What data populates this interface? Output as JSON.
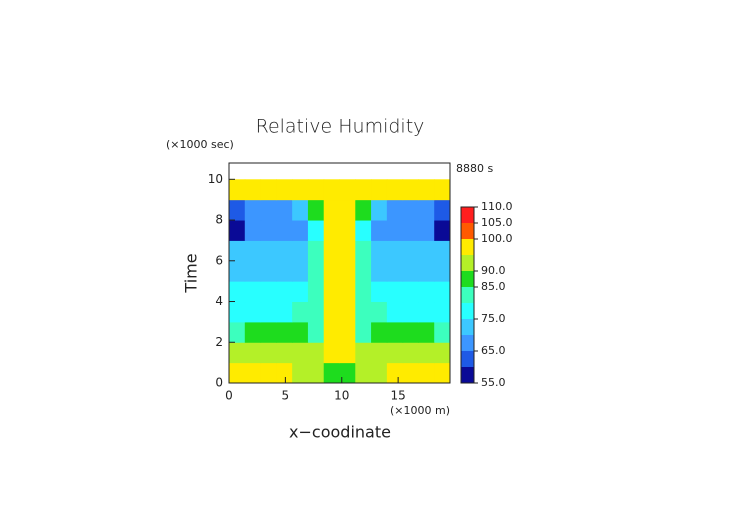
{
  "chart_data": {
    "type": "contour",
    "title": "Relative Humidity",
    "y_unit": "(×1000 sec)",
    "time_stamp": "8880 s",
    "ylabel": "Time",
    "x_unit": "(×1000 m)",
    "xlabel": "x−coodinate",
    "x": [
      0.7,
      2.1,
      3.5,
      4.9,
      6.3,
      7.7,
      9.1,
      10.5,
      11.9,
      13.3,
      14.7,
      16.1,
      17.5,
      18.9
    ],
    "y": [
      0.5,
      1.5,
      2.5,
      3.5,
      4.5,
      5.5,
      6.5,
      7.5,
      8.5,
      9.5
    ],
    "z": [
      [
        96,
        97,
        96,
        95,
        93,
        92,
        87,
        87,
        92,
        93,
        95,
        96,
        97,
        96
      ],
      [
        92,
        93,
        93,
        92,
        91,
        90,
        97,
        97,
        90,
        91,
        92,
        93,
        93,
        92
      ],
      [
        84,
        86,
        87,
        88,
        85,
        82,
        97,
        97,
        82,
        85,
        88,
        87,
        86,
        84
      ],
      [
        77,
        77,
        78,
        78,
        80,
        83,
        97,
        97,
        83,
        80,
        78,
        78,
        77,
        77
      ],
      [
        76,
        76,
        77,
        77,
        78,
        84,
        97,
        97,
        84,
        78,
        77,
        77,
        76,
        76
      ],
      [
        72,
        73,
        73,
        74,
        74,
        82,
        98,
        98,
        82,
        74,
        74,
        73,
        73,
        72
      ],
      [
        70,
        72,
        73,
        73,
        73,
        80,
        98,
        98,
        80,
        73,
        73,
        72,
        72,
        70
      ],
      [
        58,
        66,
        69,
        67,
        68,
        76,
        98,
        98,
        76,
        68,
        67,
        69,
        66,
        58
      ],
      [
        63,
        66,
        66,
        67,
        70,
        86,
        97,
        97,
        86,
        70,
        67,
        66,
        66,
        63
      ],
      [
        98,
        98,
        98,
        98,
        98,
        98,
        98,
        98,
        98,
        98,
        98,
        98,
        98,
        98
      ]
    ],
    "levels": [
      55,
      60,
      65,
      70,
      75,
      80,
      85,
      90,
      95,
      100,
      105,
      110
    ],
    "colors": [
      "#0a0a96",
      "#1e5ae6",
      "#3c96ff",
      "#3cc8ff",
      "#28ffff",
      "#3cffbe",
      "#1edc1e",
      "#b4f028",
      "#ffeb00",
      "#ff5a00",
      "#ff1e1e"
    ],
    "xlim": [
      0,
      19.6
    ],
    "ylim": [
      0,
      10.8
    ],
    "xticks": [
      0,
      5,
      10,
      15
    ],
    "yticks": [
      0,
      2,
      4,
      6,
      8,
      10
    ],
    "colorbar_lim": [
      55,
      110
    ],
    "colorbar_ticks": [
      {
        "value": 55,
        "label": "55.0"
      },
      {
        "value": 65,
        "label": "65.0"
      },
      {
        "value": 75,
        "label": "75.0"
      },
      {
        "value": 85,
        "label": "85.0"
      },
      {
        "value": 90,
        "label": "90.0"
      },
      {
        "value": 100,
        "label": "100.0"
      },
      {
        "value": 105,
        "label": "105.0"
      },
      {
        "value": 110,
        "label": "110.0"
      }
    ]
  }
}
